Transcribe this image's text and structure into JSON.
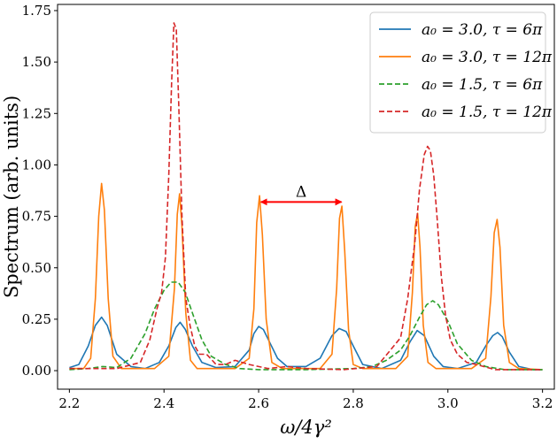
{
  "chart_data": {
    "type": "line",
    "xlabel": "ω/4γ²",
    "ylabel": "Spectrum (arb. units)",
    "xlim": [
      2.175,
      3.225
    ],
    "ylim": [
      -0.09,
      1.78
    ],
    "xticks": [
      2.2,
      2.4,
      2.6,
      2.8,
      3.0,
      3.2
    ],
    "xtick_labels": [
      "2.2",
      "2.4",
      "2.6",
      "2.8",
      "3.0",
      "3.2"
    ],
    "yticks": [
      0.0,
      0.25,
      0.5,
      0.75,
      1.0,
      1.25,
      1.5,
      1.75
    ],
    "ytick_labels": [
      "0.00",
      "0.25",
      "0.50",
      "0.75",
      "1.00",
      "1.25",
      "1.50",
      "1.75"
    ],
    "grid": false,
    "legend_position": "top-right",
    "series": [
      {
        "name": "a₀ = 3.0, τ = 6π",
        "color": "#1f77b4",
        "dash": "solid",
        "x": [
          2.2,
          2.22,
          2.24,
          2.255,
          2.268,
          2.28,
          2.3,
          2.33,
          2.36,
          2.39,
          2.41,
          2.425,
          2.434,
          2.445,
          2.46,
          2.48,
          2.51,
          2.55,
          2.58,
          2.59,
          2.6,
          2.61,
          2.625,
          2.64,
          2.66,
          2.7,
          2.73,
          2.755,
          2.77,
          2.785,
          2.8,
          2.82,
          2.86,
          2.9,
          2.92,
          2.935,
          2.95,
          2.97,
          2.99,
          3.02,
          3.06,
          3.08,
          3.095,
          3.105,
          3.115,
          3.13,
          3.15,
          3.18,
          3.2
        ],
        "y": [
          0.015,
          0.03,
          0.12,
          0.22,
          0.26,
          0.22,
          0.08,
          0.02,
          0.01,
          0.04,
          0.12,
          0.21,
          0.235,
          0.2,
          0.12,
          0.04,
          0.015,
          0.02,
          0.1,
          0.18,
          0.215,
          0.2,
          0.13,
          0.06,
          0.02,
          0.02,
          0.06,
          0.17,
          0.205,
          0.19,
          0.12,
          0.03,
          0.01,
          0.05,
          0.14,
          0.195,
          0.17,
          0.07,
          0.02,
          0.01,
          0.04,
          0.12,
          0.17,
          0.185,
          0.165,
          0.09,
          0.02,
          0.005,
          0.005
        ]
      },
      {
        "name": "a₀ = 3.0, τ = 12π",
        "color": "#ff7f0e",
        "dash": "solid",
        "x": [
          2.2,
          2.23,
          2.245,
          2.255,
          2.262,
          2.268,
          2.274,
          2.282,
          2.292,
          2.31,
          2.38,
          2.41,
          2.422,
          2.428,
          2.433,
          2.438,
          2.446,
          2.456,
          2.47,
          2.55,
          2.58,
          2.59,
          2.596,
          2.602,
          2.608,
          2.616,
          2.628,
          2.65,
          2.73,
          2.755,
          2.765,
          2.771,
          2.776,
          2.782,
          2.79,
          2.8,
          2.82,
          2.89,
          2.915,
          2.925,
          2.931,
          2.936,
          2.941,
          2.948,
          2.958,
          2.975,
          3.05,
          3.08,
          3.091,
          3.098,
          3.104,
          3.11,
          3.118,
          3.13,
          3.15,
          3.2
        ],
        "y": [
          0.01,
          0.01,
          0.06,
          0.35,
          0.75,
          0.91,
          0.78,
          0.35,
          0.07,
          0.01,
          0.01,
          0.07,
          0.4,
          0.76,
          0.86,
          0.7,
          0.28,
          0.05,
          0.01,
          0.01,
          0.06,
          0.3,
          0.72,
          0.85,
          0.66,
          0.25,
          0.04,
          0.01,
          0.01,
          0.08,
          0.4,
          0.74,
          0.8,
          0.58,
          0.2,
          0.03,
          0.01,
          0.01,
          0.07,
          0.38,
          0.7,
          0.765,
          0.6,
          0.22,
          0.04,
          0.01,
          0.01,
          0.06,
          0.36,
          0.67,
          0.735,
          0.6,
          0.22,
          0.04,
          0.01,
          0.005
        ]
      },
      {
        "name": "a₀ = 1.5, τ = 6π",
        "color": "#2ca02c",
        "dash": "dashed",
        "x": [
          2.2,
          2.24,
          2.27,
          2.3,
          2.33,
          2.36,
          2.38,
          2.4,
          2.415,
          2.43,
          2.445,
          2.46,
          2.48,
          2.5,
          2.53,
          2.56,
          2.6,
          2.7,
          2.8,
          2.84,
          2.87,
          2.9,
          2.92,
          2.94,
          2.955,
          2.968,
          2.98,
          3.0,
          3.02,
          3.05,
          3.08,
          3.12,
          3.2
        ],
        "y": [
          0.005,
          0.01,
          0.02,
          0.015,
          0.06,
          0.18,
          0.3,
          0.39,
          0.43,
          0.43,
          0.38,
          0.28,
          0.15,
          0.07,
          0.03,
          0.01,
          0.005,
          0.005,
          0.01,
          0.02,
          0.05,
          0.1,
          0.17,
          0.26,
          0.32,
          0.34,
          0.32,
          0.24,
          0.13,
          0.05,
          0.02,
          0.005,
          0.005
        ]
      },
      {
        "name": "a₀ = 1.5, τ = 12π",
        "color": "#d62728",
        "dash": "dashed",
        "x": [
          2.2,
          2.3,
          2.35,
          2.37,
          2.385,
          2.395,
          2.403,
          2.41,
          2.416,
          2.421,
          2.426,
          2.431,
          2.438,
          2.446,
          2.455,
          2.465,
          2.475,
          2.49,
          2.51,
          2.53,
          2.55,
          2.58,
          2.62,
          2.66,
          2.7,
          2.78,
          2.85,
          2.9,
          2.915,
          2.93,
          2.94,
          2.95,
          2.957,
          2.963,
          2.97,
          2.978,
          2.986,
          2.995,
          3.005,
          3.02,
          3.04,
          3.06,
          3.1,
          3.2
        ],
        "y": [
          0.01,
          0.01,
          0.04,
          0.15,
          0.3,
          0.38,
          0.55,
          0.95,
          1.4,
          1.69,
          1.66,
          1.3,
          0.75,
          0.35,
          0.22,
          0.12,
          0.08,
          0.08,
          0.03,
          0.03,
          0.05,
          0.03,
          0.01,
          0.02,
          0.01,
          0.005,
          0.02,
          0.16,
          0.35,
          0.62,
          0.88,
          1.05,
          1.09,
          1.07,
          0.95,
          0.72,
          0.46,
          0.27,
          0.15,
          0.08,
          0.04,
          0.03,
          0.005,
          0.005
        ]
      }
    ],
    "annotations": [
      {
        "type": "double-arrow",
        "x_start": 2.605,
        "x_end": 2.775,
        "y": 0.82,
        "color": "#ff0000",
        "label": "Δ"
      }
    ]
  }
}
